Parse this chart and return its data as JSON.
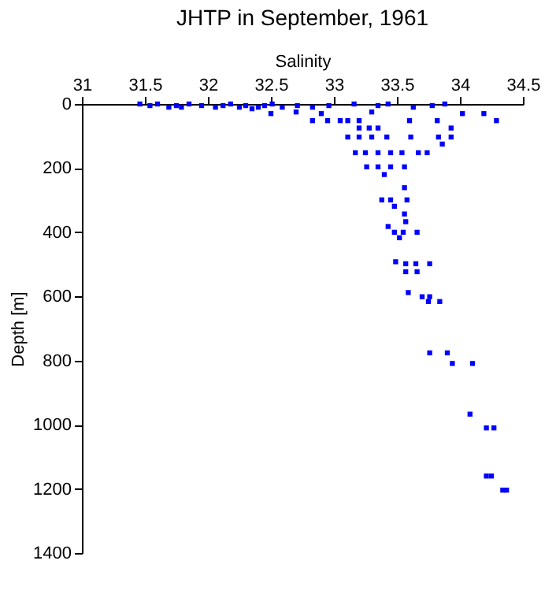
{
  "chart_data": {
    "type": "scatter",
    "title": "JHTP in September, 1961",
    "xlabel": "Salinity",
    "ylabel": "Depth [m]",
    "xlim": [
      31,
      34.5
    ],
    "xticks": [
      31,
      31.5,
      32,
      32.5,
      33,
      33.5,
      34,
      34.5
    ],
    "ylim": [
      1400,
      0
    ],
    "yticks": [
      0,
      200,
      400,
      600,
      800,
      1000,
      1200,
      1400
    ],
    "marker": "square",
    "grid": false,
    "series": [
      {
        "color": "#0000ff",
        "x": [
          31.46,
          31.54,
          31.6,
          31.69,
          31.75,
          31.79,
          31.85,
          31.95,
          32.06,
          32.12,
          32.18,
          32.25,
          32.3,
          32.35,
          32.4,
          32.45,
          32.51,
          32.59,
          32.71,
          32.83,
          32.96,
          33.16,
          33.35,
          33.43,
          33.63,
          33.78,
          33.88,
          32.5,
          32.7,
          32.9,
          33.3,
          34.02,
          34.19,
          32.83,
          32.95,
          33.05,
          33.11,
          33.2,
          33.6,
          33.82,
          34.29,
          33.2,
          33.28,
          33.35,
          33.93,
          33.11,
          33.2,
          33.3,
          33.42,
          33.61,
          33.83,
          33.93,
          33.86,
          33.17,
          33.25,
          33.35,
          33.45,
          33.54,
          33.67,
          33.74,
          33.26,
          33.35,
          33.45,
          33.56,
          33.4,
          33.56,
          33.38,
          33.45,
          33.58,
          33.48,
          33.56,
          33.57,
          33.43,
          33.48,
          33.55,
          33.66,
          33.52,
          33.49,
          33.57,
          33.65,
          33.76,
          33.57,
          33.66,
          33.59,
          33.7,
          33.76,
          33.75,
          33.84,
          33.76,
          33.9,
          33.94,
          34.1,
          34.08,
          34.21,
          34.27,
          34.21,
          34.25,
          34.34,
          34.37
        ],
        "values": [
          0,
          5,
          0,
          10,
          5,
          10,
          0,
          5,
          10,
          5,
          0,
          10,
          5,
          15,
          10,
          5,
          0,
          10,
          5,
          10,
          5,
          0,
          5,
          0,
          10,
          5,
          0,
          30,
          25,
          30,
          25,
          30,
          30,
          52,
          52,
          52,
          52,
          52,
          52,
          52,
          52,
          75,
          75,
          75,
          75,
          103,
          103,
          103,
          103,
          103,
          103,
          103,
          125,
          152,
          152,
          152,
          152,
          152,
          152,
          152,
          196,
          196,
          196,
          196,
          220,
          261,
          299,
          299,
          299,
          319,
          343,
          367,
          382,
          400,
          400,
          400,
          417,
          492,
          498,
          498,
          498,
          523,
          523,
          588,
          601,
          601,
          616,
          616,
          776,
          776,
          809,
          809,
          967,
          1010,
          1010,
          1160,
          1160,
          1204,
          1204
        ]
      }
    ]
  }
}
